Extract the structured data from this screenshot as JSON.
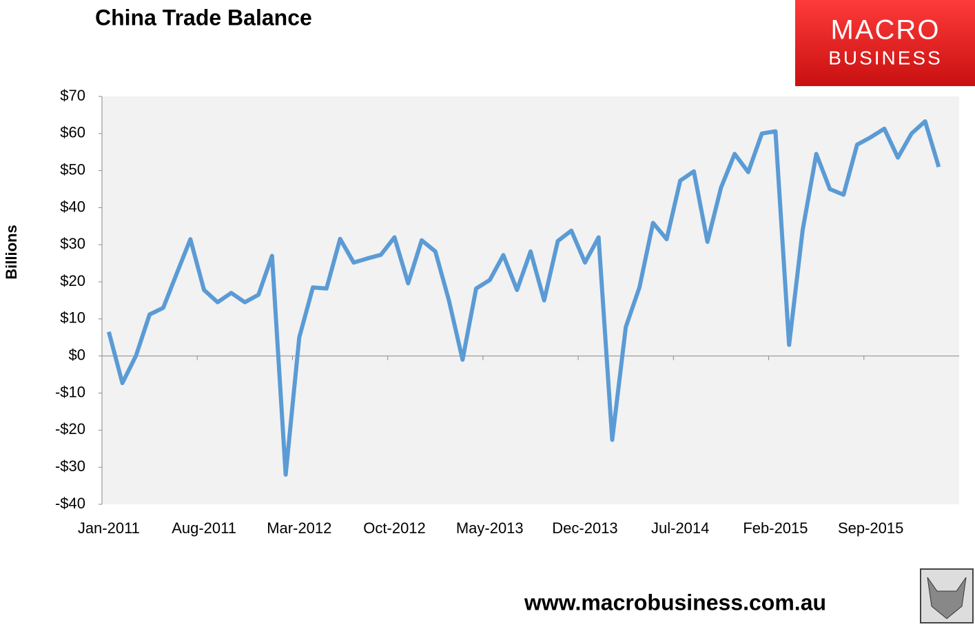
{
  "chart_data": {
    "type": "line",
    "title": "China Trade Balance",
    "y_label": "Billions",
    "logo": [
      "MACRO",
      "BUSINESS"
    ],
    "footer": "www.macrobusiness.com.au",
    "categories": [
      "Jan-2011",
      null,
      null,
      null,
      null,
      null,
      null,
      "Aug-2011",
      null,
      null,
      null,
      null,
      null,
      null,
      "Mar-2012",
      null,
      null,
      null,
      null,
      null,
      null,
      "Oct-2012",
      null,
      null,
      null,
      null,
      null,
      null,
      "May-2013",
      null,
      null,
      null,
      null,
      null,
      null,
      "Dec-2013",
      null,
      null,
      null,
      null,
      null,
      null,
      "Jul-2014",
      null,
      null,
      null,
      null,
      null,
      null,
      "Feb-2015",
      null,
      null,
      null,
      null,
      null,
      null,
      "Sep-2015",
      null,
      null,
      null,
      null,
      null
    ],
    "series": [
      {
        "name": "Trade balance",
        "color": "#5b9bd5",
        "values": [
          6.5,
          -7.3,
          0.1,
          11.2,
          13,
          22.3,
          31.5,
          17.8,
          14.5,
          17,
          14.5,
          16.5,
          27,
          -32,
          5,
          18.5,
          18.2,
          31.6,
          25.2,
          26.3,
          27.3,
          32,
          19.6,
          31.2,
          28.2,
          15,
          -1,
          18.2,
          20.5,
          27.2,
          17.8,
          28.2,
          15,
          31,
          33.8,
          25.2,
          32,
          -22.6,
          7.8,
          18.5,
          35.9,
          31.5,
          47.3,
          49.8,
          30.8,
          45.4,
          54.5,
          49.6,
          60,
          60.6,
          3,
          34,
          54.5,
          45,
          43.5,
          57,
          59,
          61.3,
          53.5,
          60,
          63.3,
          51
        ]
      }
    ],
    "ylim": [
      -40,
      70
    ],
    "yticks": [
      {
        "value": -40,
        "label": "-$40"
      },
      {
        "value": -30,
        "label": "-$30"
      },
      {
        "value": -20,
        "label": "-$20"
      },
      {
        "value": -10,
        "label": "-$10"
      },
      {
        "value": 0,
        "label": "$0"
      },
      {
        "value": 10,
        "label": "$10"
      },
      {
        "value": 20,
        "label": "$20"
      },
      {
        "value": 30,
        "label": "$30"
      },
      {
        "value": 40,
        "label": "$40"
      },
      {
        "value": 50,
        "label": "$50"
      },
      {
        "value": 60,
        "label": "$60"
      },
      {
        "value": 70,
        "label": "$70"
      }
    ],
    "grid": false
  }
}
